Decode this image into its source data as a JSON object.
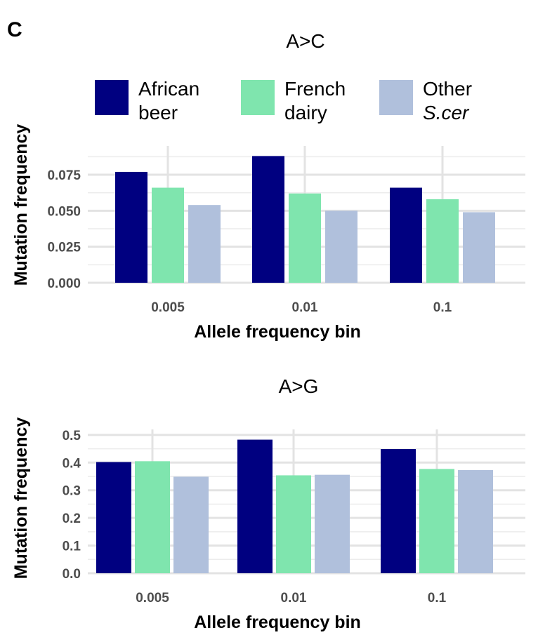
{
  "panel_label": "C",
  "legend": {
    "items": [
      {
        "line1": "African",
        "line2": "beer",
        "color": "#000080"
      },
      {
        "line1": "French",
        "line2": "dairy",
        "color": "#7FE5AE"
      },
      {
        "line1": "Other",
        "line2": "S.cer",
        "color": "#B0C0DC"
      }
    ]
  },
  "chart_data": [
    {
      "type": "bar",
      "title": "A>C",
      "xlabel": "Allele frequency bin",
      "ylabel": "Mutation frequency",
      "categories": [
        "0.005",
        "0.01",
        "0.1"
      ],
      "ylim": [
        0,
        0.095
      ],
      "yticks": [
        "0.000",
        "0.025",
        "0.050",
        "0.075"
      ],
      "ytick_values": [
        0,
        0.025,
        0.05,
        0.075
      ],
      "grid": true,
      "series": [
        {
          "name": "African beer",
          "values": [
            0.077,
            0.088,
            0.066
          ]
        },
        {
          "name": "French dairy",
          "values": [
            0.066,
            0.062,
            0.058
          ]
        },
        {
          "name": "Other S.cer",
          "values": [
            0.054,
            0.05,
            0.049
          ]
        }
      ]
    },
    {
      "type": "bar",
      "title": "A>G",
      "xlabel": "Allele frequency bin",
      "ylabel": "Mutation frequency",
      "categories": [
        "0.005",
        "0.01",
        "0.1"
      ],
      "ylim": [
        0,
        0.52
      ],
      "yticks": [
        "0.0",
        "0.1",
        "0.2",
        "0.3",
        "0.4",
        "0.5"
      ],
      "ytick_values": [
        0,
        0.1,
        0.2,
        0.3,
        0.4,
        0.5
      ],
      "grid": true,
      "series": [
        {
          "name": "African beer",
          "values": [
            0.402,
            0.483,
            0.449
          ]
        },
        {
          "name": "French dairy",
          "values": [
            0.405,
            0.354,
            0.377
          ]
        },
        {
          "name": "Other S.cer",
          "values": [
            0.349,
            0.356,
            0.373
          ]
        }
      ]
    }
  ]
}
